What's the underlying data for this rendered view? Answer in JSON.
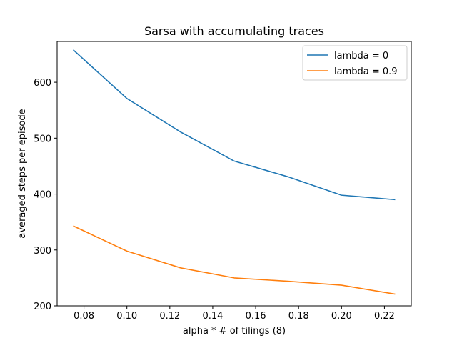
{
  "chart_data": {
    "type": "line",
    "title": "Sarsa with accumulating traces",
    "xlabel": "alpha * # of tilings (8)",
    "ylabel": "averaged steps per episode",
    "xlim": [
      0.0675,
      0.2325
    ],
    "ylim": [
      200,
      673
    ],
    "xticks": [
      0.08,
      0.1,
      0.12,
      0.14,
      0.16,
      0.18,
      0.2,
      0.22
    ],
    "xtick_labels": [
      "0.08",
      "0.10",
      "0.12",
      "0.14",
      "0.16",
      "0.18",
      "0.20",
      "0.22"
    ],
    "yticks": [
      200,
      300,
      400,
      500,
      600
    ],
    "ytick_labels": [
      "200",
      "300",
      "400",
      "500",
      "600"
    ],
    "grid": false,
    "legend_position": "top-right",
    "x": [
      0.075,
      0.1,
      0.125,
      0.15,
      0.175,
      0.2,
      0.225
    ],
    "series": [
      {
        "name": "lambda = 0",
        "color": "#1f77b4",
        "values": [
          658,
          571,
          511,
          459,
          431,
          398,
          390
        ]
      },
      {
        "name": "lambda = 0.9",
        "color": "#ff7f0e",
        "values": [
          343,
          298,
          268,
          250,
          244,
          237,
          221
        ]
      }
    ]
  }
}
